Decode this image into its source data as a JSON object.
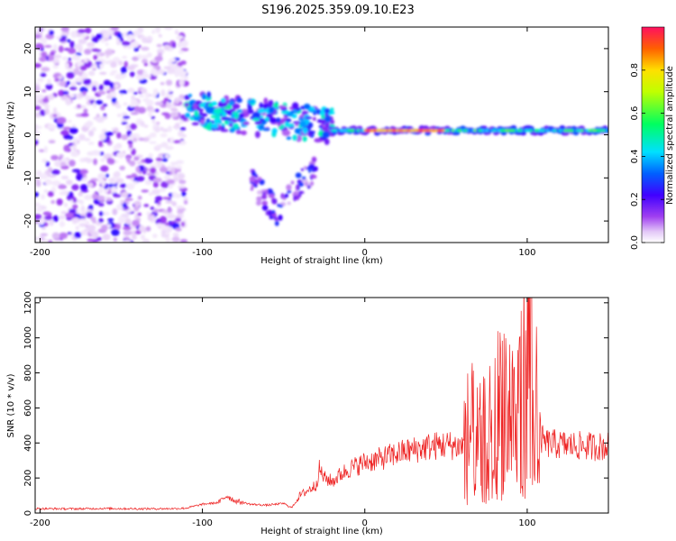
{
  "title": "S196.2025.359.09.10.E23",
  "chart_data": [
    {
      "type": "heatmap",
      "xlabel": "Height of straight line (km)",
      "ylabel": "Frequency (Hz)",
      "xlim": [
        -203,
        150
      ],
      "ylim": [
        -25,
        25
      ],
      "xticks": [
        -200,
        -100,
        0,
        100
      ],
      "yticks": [
        -20,
        -10,
        0,
        10,
        20
      ],
      "colorbar": {
        "label": "Normalized spectral amplitude",
        "range": [
          0.0,
          1.0
        ],
        "ticks": [
          0.0,
          0.2,
          0.4,
          0.6,
          0.8
        ]
      },
      "features": [
        {
          "region": "noise",
          "x_range": [
            -203,
            -110
          ],
          "freq_range": [
            -25,
            25
          ],
          "amplitude": [
            0.02,
            0.25
          ]
        },
        {
          "region": "fragmented_band",
          "x_range": [
            -110,
            -20
          ],
          "freq_center": [
            6,
            2
          ],
          "amplitude": [
            0.1,
            0.5
          ]
        },
        {
          "region": "downward_branch",
          "x_range": [
            -70,
            -30
          ],
          "freq_range": [
            -18,
            0
          ],
          "amplitude": [
            0.05,
            0.3
          ]
        },
        {
          "region": "stable_band",
          "x_range": [
            -20,
            150
          ],
          "freq_center": 1,
          "amplitude": [
            0.3,
            1.0
          ]
        }
      ]
    },
    {
      "type": "line",
      "xlabel": "Height of straight line (km)",
      "ylabel": "SNR (10 * v/v)",
      "xlim": [
        -203,
        150
      ],
      "ylim": [
        0,
        1230
      ],
      "xticks": [
        -200,
        -100,
        0,
        100
      ],
      "yticks": [
        0,
        200,
        400,
        600,
        800,
        1000,
        1200
      ],
      "series": [
        {
          "name": "SNR",
          "color": "#ee2222",
          "x": [
            -200,
            -180,
            -160,
            -140,
            -120,
            -110,
            -100,
            -90,
            -85,
            -80,
            -70,
            -60,
            -50,
            -45,
            -40,
            -30,
            -28,
            -25,
            -20,
            -15,
            -10,
            0,
            10,
            20,
            30,
            40,
            50,
            60,
            65,
            70,
            80,
            85,
            90,
            95,
            100,
            103,
            106,
            110,
            120,
            130,
            140,
            150
          ],
          "values": [
            25,
            24,
            26,
            24,
            25,
            28,
            50,
            60,
            100,
            70,
            50,
            45,
            55,
            30,
            100,
            160,
            250,
            200,
            180,
            220,
            250,
            290,
            310,
            340,
            360,
            380,
            390,
            380,
            480,
            380,
            500,
            700,
            580,
            620,
            850,
            1200,
            500,
            400,
            390,
            385,
            380,
            380
          ]
        }
      ]
    }
  ]
}
